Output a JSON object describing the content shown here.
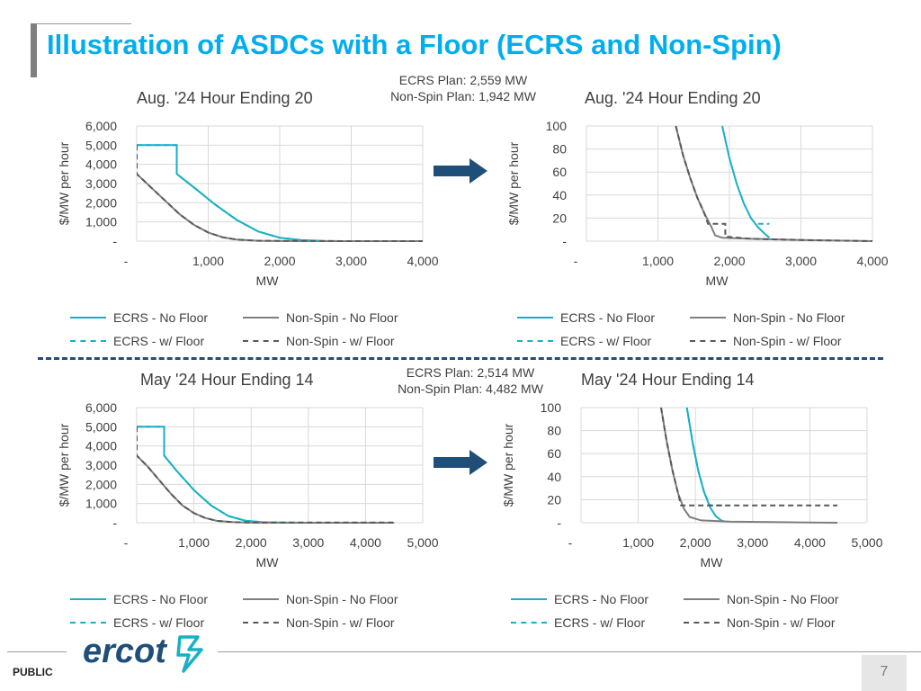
{
  "page": {
    "title": "Illustration of ASDCs with a Floor (ECRS and Non-Spin)",
    "public_label": "PUBLIC",
    "page_number": "7",
    "logo_text": "ercot"
  },
  "sections": [
    {
      "plan_ecrs": "ECRS Plan: 2,559 MW",
      "plan_nonspin": "Non-Spin Plan: 1,942 MW",
      "left_title": "Aug. '24 Hour Ending 20",
      "right_title": "Aug. '24 Hour Ending 20"
    },
    {
      "plan_ecrs": "ECRS Plan: 2,514 MW",
      "plan_nonspin": "Non-Spin Plan: 4,482 MW",
      "left_title": "May '24 Hour Ending 14",
      "right_title": "May '24 Hour Ending 14"
    }
  ],
  "legend": {
    "ecrs_no_floor": "ECRS - No Floor",
    "nonspin_no_floor": "Non-Spin - No Floor",
    "ecrs_w_floor": "ECRS - w/ Floor",
    "nonspin_w_floor": "Non-Spin - w/ Floor"
  },
  "colors": {
    "ecrs": "#17b0c4",
    "nonspin": "#7f7f7f",
    "nonspin_dash": "#595959",
    "title": "#00aeef",
    "arrow": "#1f4e79"
  },
  "chart_data": [
    {
      "id": "aug-left",
      "type": "line",
      "xlabel": "MW",
      "ylabel": "$/MW per hour",
      "xlim": [
        0,
        4000
      ],
      "ylim": [
        0,
        6000
      ],
      "xticks": [
        0,
        1000,
        2000,
        3000,
        4000
      ],
      "xtick_labels": [
        "-",
        "1,000",
        "2,000",
        "3,000",
        "4,000"
      ],
      "yticks": [
        0,
        1000,
        2000,
        3000,
        4000,
        5000,
        6000
      ],
      "ytick_labels": [
        "-",
        "1,000",
        "2,000",
        "3,000",
        "4,000",
        "5,000",
        "6,000"
      ],
      "grid": true,
      "series": [
        {
          "name": "ECRS - No Floor",
          "style": "solid",
          "color": "#17b0c4",
          "points": [
            [
              0,
              5000
            ],
            [
              560,
              5000
            ],
            [
              560,
              3500
            ],
            [
              800,
              2800
            ],
            [
              1100,
              1900
            ],
            [
              1400,
              1100
            ],
            [
              1700,
              500
            ],
            [
              2000,
              180
            ],
            [
              2300,
              50
            ],
            [
              2600,
              10
            ],
            [
              3000,
              0
            ],
            [
              4000,
              0
            ]
          ]
        },
        {
          "name": "ECRS - w/ Floor",
          "style": "dash",
          "color": "#17b0c4",
          "points": [
            [
              0,
              5000
            ],
            [
              560,
              5000
            ],
            [
              560,
              3500
            ],
            [
              800,
              2800
            ],
            [
              1100,
              1900
            ],
            [
              1400,
              1100
            ],
            [
              1700,
              500
            ],
            [
              2000,
              180
            ],
            [
              2300,
              50
            ],
            [
              2559,
              15
            ]
          ]
        },
        {
          "name": "Non-Spin - No Floor",
          "style": "solid",
          "color": "#7f7f7f",
          "points": [
            [
              0,
              3500
            ],
            [
              200,
              2800
            ],
            [
              400,
              2100
            ],
            [
              600,
              1400
            ],
            [
              800,
              850
            ],
            [
              1000,
              450
            ],
            [
              1200,
              200
            ],
            [
              1400,
              80
            ],
            [
              1700,
              20
            ],
            [
              2000,
              5
            ],
            [
              2500,
              0
            ],
            [
              4000,
              0
            ]
          ]
        },
        {
          "name": "Non-Spin - w/ Floor",
          "style": "dash",
          "color": "#595959",
          "points": [
            [
              0,
              5000
            ],
            [
              0,
              3500
            ],
            [
              200,
              2800
            ],
            [
              400,
              2100
            ],
            [
              600,
              1400
            ],
            [
              800,
              850
            ],
            [
              1000,
              450
            ],
            [
              1200,
              200
            ],
            [
              1400,
              80
            ],
            [
              1700,
              20
            ],
            [
              1942,
              15
            ],
            [
              2500,
              5
            ],
            [
              3000,
              2
            ],
            [
              3500,
              1
            ],
            [
              4000,
              0
            ]
          ]
        }
      ]
    },
    {
      "id": "aug-right",
      "type": "line",
      "xlabel": "MW",
      "ylabel": "$/MW per hour",
      "xlim": [
        0,
        4000
      ],
      "ylim": [
        0,
        100
      ],
      "xticks": [
        0,
        1000,
        2000,
        3000,
        4000
      ],
      "xtick_labels": [
        "-",
        "1,000",
        "2,000",
        "3,000",
        "4,000"
      ],
      "yticks": [
        0,
        20,
        40,
        60,
        80,
        100
      ],
      "ytick_labels": [
        "-",
        "20",
        "40",
        "60",
        "80",
        "100"
      ],
      "grid": true,
      "series": [
        {
          "name": "ECRS - No Floor",
          "style": "solid",
          "color": "#17b0c4",
          "points": [
            [
              1900,
              100
            ],
            [
              2000,
              72
            ],
            [
              2100,
              50
            ],
            [
              2200,
              33
            ],
            [
              2300,
              20
            ],
            [
              2400,
              12
            ],
            [
              2500,
              6
            ],
            [
              2559,
              3
            ]
          ]
        },
        {
          "name": "ECRS - w/ Floor",
          "style": "dash",
          "color": "#17b0c4",
          "points": [
            [
              2400,
              15
            ],
            [
              2559,
              15
            ]
          ]
        },
        {
          "name": "Non-Spin - No Floor",
          "style": "solid",
          "color": "#7f7f7f",
          "points": [
            [
              1250,
              100
            ],
            [
              1350,
              75
            ],
            [
              1450,
              55
            ],
            [
              1550,
              38
            ],
            [
              1650,
              24
            ],
            [
              1750,
              12
            ],
            [
              1800,
              5
            ],
            [
              1900,
              3
            ],
            [
              2300,
              2
            ],
            [
              3000,
              1
            ],
            [
              3500,
              0.5
            ],
            [
              4000,
              0
            ]
          ]
        },
        {
          "name": "Non-Spin - w/ Floor",
          "style": "dash",
          "color": "#595959",
          "points": [
            [
              1250,
              100
            ],
            [
              1350,
              75
            ],
            [
              1450,
              55
            ],
            [
              1550,
              38
            ],
            [
              1650,
              24
            ],
            [
              1700,
              15
            ],
            [
              1942,
              15
            ],
            [
              1942,
              4
            ],
            [
              2300,
              2
            ],
            [
              3000,
              1
            ],
            [
              3500,
              0.5
            ],
            [
              4000,
              0
            ]
          ]
        }
      ]
    },
    {
      "id": "may-left",
      "type": "line",
      "xlabel": "MW",
      "ylabel": "$/MW per hour",
      "xlim": [
        0,
        5000
      ],
      "ylim": [
        0,
        6000
      ],
      "xticks": [
        0,
        1000,
        2000,
        3000,
        4000,
        5000
      ],
      "xtick_labels": [
        "-",
        "1,000",
        "2,000",
        "3,000",
        "4,000",
        "5,000"
      ],
      "yticks": [
        0,
        1000,
        2000,
        3000,
        4000,
        5000,
        6000
      ],
      "ytick_labels": [
        "-",
        "1,000",
        "2,000",
        "3,000",
        "4,000",
        "5,000",
        "6,000"
      ],
      "grid": true,
      "series": [
        {
          "name": "ECRS - No Floor",
          "style": "solid",
          "color": "#17b0c4",
          "points": [
            [
              0,
              5000
            ],
            [
              480,
              5000
            ],
            [
              480,
              3500
            ],
            [
              700,
              2700
            ],
            [
              1000,
              1700
            ],
            [
              1300,
              900
            ],
            [
              1600,
              350
            ],
            [
              1900,
              110
            ],
            [
              2200,
              30
            ],
            [
              2514,
              10
            ],
            [
              3000,
              0
            ],
            [
              4500,
              0
            ]
          ]
        },
        {
          "name": "ECRS - w/ Floor",
          "style": "dash",
          "color": "#17b0c4",
          "points": [
            [
              0,
              5000
            ],
            [
              480,
              5000
            ],
            [
              480,
              3500
            ],
            [
              700,
              2700
            ],
            [
              1000,
              1700
            ],
            [
              1300,
              900
            ],
            [
              1600,
              350
            ],
            [
              1900,
              110
            ],
            [
              2200,
              30
            ],
            [
              2514,
              10
            ]
          ]
        },
        {
          "name": "Non-Spin - No Floor",
          "style": "solid",
          "color": "#7f7f7f",
          "points": [
            [
              0,
              3500
            ],
            [
              200,
              2900
            ],
            [
              400,
              2200
            ],
            [
              600,
              1500
            ],
            [
              800,
              900
            ],
            [
              1000,
              500
            ],
            [
              1200,
              250
            ],
            [
              1400,
              100
            ],
            [
              1700,
              30
            ],
            [
              2000,
              5
            ],
            [
              2500,
              0
            ],
            [
              4482,
              0
            ]
          ]
        },
        {
          "name": "Non-Spin - w/ Floor",
          "style": "dash",
          "color": "#595959",
          "points": [
            [
              0,
              5000
            ],
            [
              0,
              3500
            ],
            [
              200,
              2900
            ],
            [
              400,
              2200
            ],
            [
              600,
              1500
            ],
            [
              800,
              900
            ],
            [
              1000,
              500
            ],
            [
              1200,
              250
            ],
            [
              1400,
              100
            ],
            [
              1700,
              30
            ],
            [
              2000,
              15
            ],
            [
              3000,
              15
            ],
            [
              4482,
              15
            ]
          ]
        }
      ]
    },
    {
      "id": "may-right",
      "type": "line",
      "xlabel": "MW",
      "ylabel": "$/MW per hour",
      "xlim": [
        0,
        5000
      ],
      "ylim": [
        0,
        100
      ],
      "xticks": [
        0,
        1000,
        2000,
        3000,
        4000,
        5000
      ],
      "xtick_labels": [
        "-",
        "1,000",
        "2,000",
        "3,000",
        "4,000",
        "5,000"
      ],
      "yticks": [
        0,
        20,
        40,
        60,
        80,
        100
      ],
      "ytick_labels": [
        "-",
        "20",
        "40",
        "60",
        "80",
        "100"
      ],
      "grid": true,
      "series": [
        {
          "name": "ECRS - No Floor",
          "style": "solid",
          "color": "#17b0c4",
          "points": [
            [
              1850,
              100
            ],
            [
              1950,
              70
            ],
            [
              2050,
              45
            ],
            [
              2150,
              27
            ],
            [
              2250,
              14
            ],
            [
              2350,
              6
            ],
            [
              2450,
              2
            ],
            [
              2514,
              1
            ]
          ]
        },
        {
          "name": "ECRS - w/ Floor",
          "style": "dash",
          "color": "#17b0c4",
          "points": [
            [
              1850,
              100
            ],
            [
              1950,
              70
            ],
            [
              2050,
              45
            ],
            [
              2150,
              27
            ],
            [
              2250,
              15
            ],
            [
              2514,
              15
            ]
          ]
        },
        {
          "name": "Non-Spin - No Floor",
          "style": "solid",
          "color": "#7f7f7f",
          "points": [
            [
              1400,
              100
            ],
            [
              1500,
              70
            ],
            [
              1600,
              45
            ],
            [
              1700,
              25
            ],
            [
              1800,
              12
            ],
            [
              1900,
              5
            ],
            [
              2100,
              2
            ],
            [
              2600,
              1
            ],
            [
              3500,
              0.5
            ],
            [
              4482,
              0
            ]
          ]
        },
        {
          "name": "Non-Spin - w/ Floor",
          "style": "dash",
          "color": "#595959",
          "points": [
            [
              1400,
              100
            ],
            [
              1500,
              70
            ],
            [
              1600,
              45
            ],
            [
              1700,
              25
            ],
            [
              1750,
              15
            ],
            [
              4482,
              15
            ]
          ]
        }
      ]
    }
  ]
}
